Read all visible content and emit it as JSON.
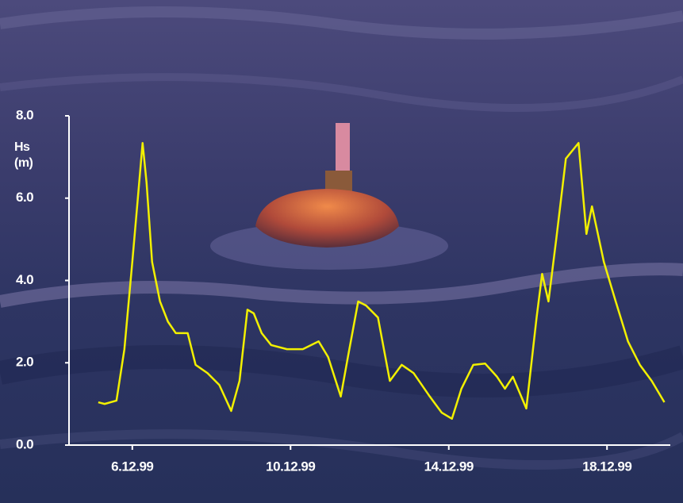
{
  "chart_data": {
    "type": "line",
    "y_label": "Hs (m)",
    "x": [
      5.14,
      5.3,
      5.6,
      5.8,
      6.0,
      6.14,
      6.26,
      6.36,
      6.5,
      6.7,
      6.9,
      7.1,
      7.4,
      7.6,
      7.9,
      8.2,
      8.5,
      8.71,
      8.91,
      9.07,
      9.27,
      9.51,
      9.91,
      10.31,
      10.71,
      10.95,
      11.27,
      11.45,
      11.71,
      11.91,
      12.21,
      12.51,
      12.81,
      13.11,
      13.52,
      13.82,
      14.08,
      14.32,
      14.62,
      14.92,
      15.22,
      15.42,
      15.62,
      15.96,
      16.22,
      16.36,
      16.52,
      16.72,
      16.96,
      17.28,
      17.48,
      17.62,
      17.92,
      18.22,
      18.53,
      18.83,
      19.13,
      19.45
    ],
    "series": [
      {
        "color": "#f2f000",
        "values": [
          1.04,
          1.0,
          1.08,
          2.33,
          4.45,
          6.0,
          7.34,
          6.38,
          4.45,
          3.49,
          3.0,
          2.72,
          2.72,
          1.95,
          1.75,
          1.46,
          0.83,
          1.56,
          3.29,
          3.2,
          2.72,
          2.43,
          2.33,
          2.33,
          2.52,
          2.14,
          1.18,
          2.14,
          3.49,
          3.39,
          3.1,
          1.56,
          1.95,
          1.75,
          1.18,
          0.79,
          0.64,
          1.37,
          1.95,
          1.98,
          1.66,
          1.37,
          1.66,
          0.89,
          3.1,
          4.16,
          3.49,
          5.03,
          6.96,
          7.34,
          5.13,
          5.8,
          4.45,
          3.49,
          2.52,
          1.95,
          1.56,
          1.04
        ]
      }
    ],
    "xlim": [
      4.4,
      19.6
    ],
    "xticks": [
      {
        "value": 6,
        "label": "6.12.99"
      },
      {
        "value": 10,
        "label": "10.12.99"
      },
      {
        "value": 14,
        "label": "14.12.99"
      },
      {
        "value": 18,
        "label": "18.12.99"
      }
    ],
    "ylim": [
      0,
      8
    ],
    "yticks": [
      {
        "value": 0,
        "label": "0.0"
      },
      {
        "value": 2,
        "label": "2.0"
      },
      {
        "value": 4,
        "label": "4.0"
      },
      {
        "value": 6,
        "label": "6.0"
      },
      {
        "value": 8,
        "label": "8.0"
      }
    ],
    "grid": false
  }
}
